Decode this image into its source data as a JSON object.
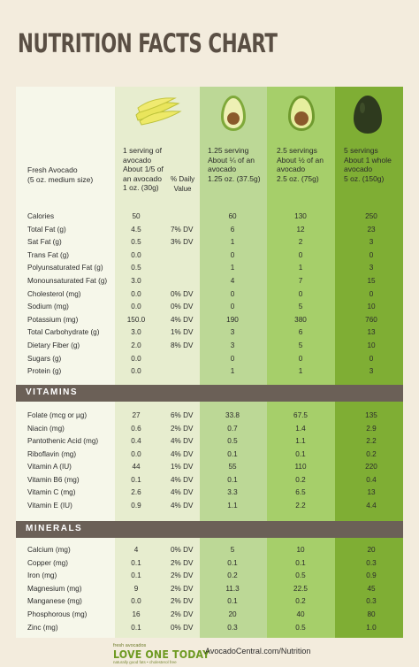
{
  "title": "NUTRITION FACTS CHART",
  "headers": {
    "label": [
      "Fresh Avocado",
      "(5 oz. medium size)"
    ],
    "c1": [
      "1 serving of",
      "avocado",
      "About 1/5 of",
      "an avocado",
      "1 oz. (30g)"
    ],
    "dv": [
      "% Daily",
      "Value"
    ],
    "c2": [
      "1.25 serving",
      "About ¼ of an",
      "avocado",
      "1.25 oz. (37.5g)"
    ],
    "c3": [
      "2.5 servings",
      "About ½ of an",
      "avocado",
      "2.5 oz. (75g)"
    ],
    "c4": [
      "5 servings",
      "About 1 whole",
      "avocado",
      "5 oz. (150g)"
    ]
  },
  "nutrition": [
    {
      "label": "Calories",
      "v1": "50",
      "dv": "",
      "v2": "60",
      "v3": "130",
      "v4": "250"
    },
    {
      "label": "Total Fat (g)",
      "v1": "4.5",
      "dv": "7% DV",
      "v2": "6",
      "v3": "12",
      "v4": "23"
    },
    {
      "label": "Sat Fat (g)",
      "v1": "0.5",
      "dv": "3% DV",
      "v2": "1",
      "v3": "2",
      "v4": "3"
    },
    {
      "label": "Trans Fat (g)",
      "v1": "0.0",
      "dv": "",
      "v2": "0",
      "v3": "0",
      "v4": "0"
    },
    {
      "label": "Polyunsaturated Fat (g)",
      "v1": "0.5",
      "dv": "",
      "v2": "1",
      "v3": "1",
      "v4": "3"
    },
    {
      "label": "Monounsaturated Fat (g)",
      "v1": "3.0",
      "dv": "",
      "v2": "4",
      "v3": "7",
      "v4": "15"
    },
    {
      "label": "Cholesterol (mg)",
      "v1": "0.0",
      "dv": "0% DV",
      "v2": "0",
      "v3": "0",
      "v4": "0"
    },
    {
      "label": "Sodium (mg)",
      "v1": "0.0",
      "dv": "0% DV",
      "v2": "0",
      "v3": "5",
      "v4": "10"
    },
    {
      "label": "Potassium (mg)",
      "v1": "150.0",
      "dv": "4% DV",
      "v2": "190",
      "v3": "380",
      "v4": "760"
    },
    {
      "label": "Total Carbohydrate (g)",
      "v1": "3.0",
      "dv": "1% DV",
      "v2": "3",
      "v3": "6",
      "v4": "13"
    },
    {
      "label": "Dietary Fiber (g)",
      "v1": "2.0",
      "dv": "8% DV",
      "v2": "3",
      "v3": "5",
      "v4": "10"
    },
    {
      "label": "Sugars (g)",
      "v1": "0.0",
      "dv": "",
      "v2": "0",
      "v3": "0",
      "v4": "0"
    },
    {
      "label": "Protein (g)",
      "v1": "0.0",
      "dv": "",
      "v2": "1",
      "v3": "1",
      "v4": "3"
    }
  ],
  "vitamins_title": "VITAMINS",
  "vitamins": [
    {
      "label": "Folate (mcg or µg)",
      "v1": "27",
      "dv": "6% DV",
      "v2": "33.8",
      "v3": "67.5",
      "v4": "135"
    },
    {
      "label": "Niacin (mg)",
      "v1": "0.6",
      "dv": "2% DV",
      "v2": "0.7",
      "v3": "1.4",
      "v4": "2.9"
    },
    {
      "label": "Pantothenic Acid (mg)",
      "v1": "0.4",
      "dv": "4% DV",
      "v2": "0.5",
      "v3": "1.1",
      "v4": "2.2"
    },
    {
      "label": "Riboflavin (mg)",
      "v1": "0.0",
      "dv": "4% DV",
      "v2": "0.1",
      "v3": "0.1",
      "v4": "0.2"
    },
    {
      "label": "Vitamin A (IU)",
      "v1": "44",
      "dv": "1% DV",
      "v2": "55",
      "v3": "110",
      "v4": "220"
    },
    {
      "label": "Vitamin B6 (mg)",
      "v1": "0.1",
      "dv": "4% DV",
      "v2": "0.1",
      "v3": "0.2",
      "v4": "0.4"
    },
    {
      "label": "Vitamin C (mg)",
      "v1": "2.6",
      "dv": "4% DV",
      "v2": "3.3",
      "v3": "6.5",
      "v4": "13"
    },
    {
      "label": "Vitamin E (IU)",
      "v1": "0.9",
      "dv": "4% DV",
      "v2": "1.1",
      "v3": "2.2",
      "v4": "4.4"
    }
  ],
  "minerals_title": "MINERALS",
  "minerals": [
    {
      "label": "Calcium (mg)",
      "v1": "4",
      "dv": "0% DV",
      "v2": "5",
      "v3": "10",
      "v4": "20"
    },
    {
      "label": "Copper (mg)",
      "v1": "0.1",
      "dv": "2% DV",
      "v2": "0.1",
      "v3": "0.1",
      "v4": "0.3"
    },
    {
      "label": "Iron (mg)",
      "v1": "0.1",
      "dv": "2% DV",
      "v2": "0.2",
      "v3": "0.5",
      "v4": "0.9"
    },
    {
      "label": "Magnesium (mg)",
      "v1": "9",
      "dv": "2% DV",
      "v2": "11.3",
      "v3": "22.5",
      "v4": "45"
    },
    {
      "label": "Manganese (mg)",
      "v1": "0.0",
      "dv": "2% DV",
      "v2": "0.1",
      "v3": "0.2",
      "v4": "0.3"
    },
    {
      "label": "Phosphorous (mg)",
      "v1": "16",
      "dv": "2% DV",
      "v2": "20",
      "v3": "40",
      "v4": "80"
    },
    {
      "label": "Zinc (mg)",
      "v1": "0.1",
      "dv": "0% DV",
      "v2": "0.3",
      "v3": "0.5",
      "v4": "1.0"
    }
  ],
  "footer": {
    "brand_small": "fresh avocados",
    "brand_big": "LOVE ONE TODAY",
    "tagline": "naturally good fats  •  cholesterol free",
    "url": "AvocadoCentral.com/Nutrition"
  },
  "icons": {
    "c1": "avocado-slices-icon",
    "c2": "avocado-quarter-icon",
    "c3": "avocado-half-icon",
    "c4": "whole-avocado-icon"
  },
  "colors": {
    "background": "#f3ecdd",
    "title": "#5a4f44",
    "band": "#6b6057",
    "col1": "#e7edcf",
    "col2": "#bcd896",
    "col3": "#a6cf6a",
    "col4": "#7fae34",
    "brand": "#6e9a22"
  }
}
